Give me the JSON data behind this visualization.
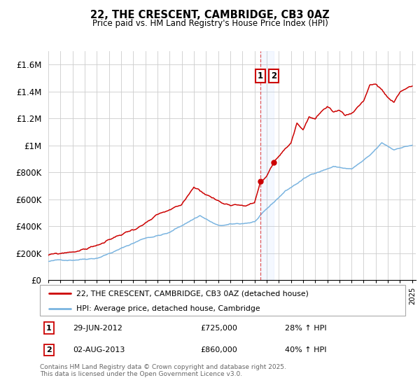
{
  "title": "22, THE CRESCENT, CAMBRIDGE, CB3 0AZ",
  "subtitle": "Price paid vs. HM Land Registry's House Price Index (HPI)",
  "ylim": [
    0,
    1700000
  ],
  "yticks": [
    0,
    200000,
    400000,
    600000,
    800000,
    1000000,
    1200000,
    1400000,
    1600000
  ],
  "ytick_labels": [
    "£0",
    "£200K",
    "£400K",
    "£600K",
    "£800K",
    "£1M",
    "£1.2M",
    "£1.4M",
    "£1.6M"
  ],
  "color_hpi": "#7ab4e0",
  "color_price": "#cc0000",
  "marker1_x": 2012.5,
  "marker2_x": 2013.6,
  "legend_line1": "22, THE CRESCENT, CAMBRIDGE, CB3 0AZ (detached house)",
  "legend_line2": "HPI: Average price, detached house, Cambridge",
  "footer": "Contains HM Land Registry data © Crown copyright and database right 2025.\nThis data is licensed under the Open Government Licence v3.0.",
  "xstart": 1995,
  "xend": 2025
}
